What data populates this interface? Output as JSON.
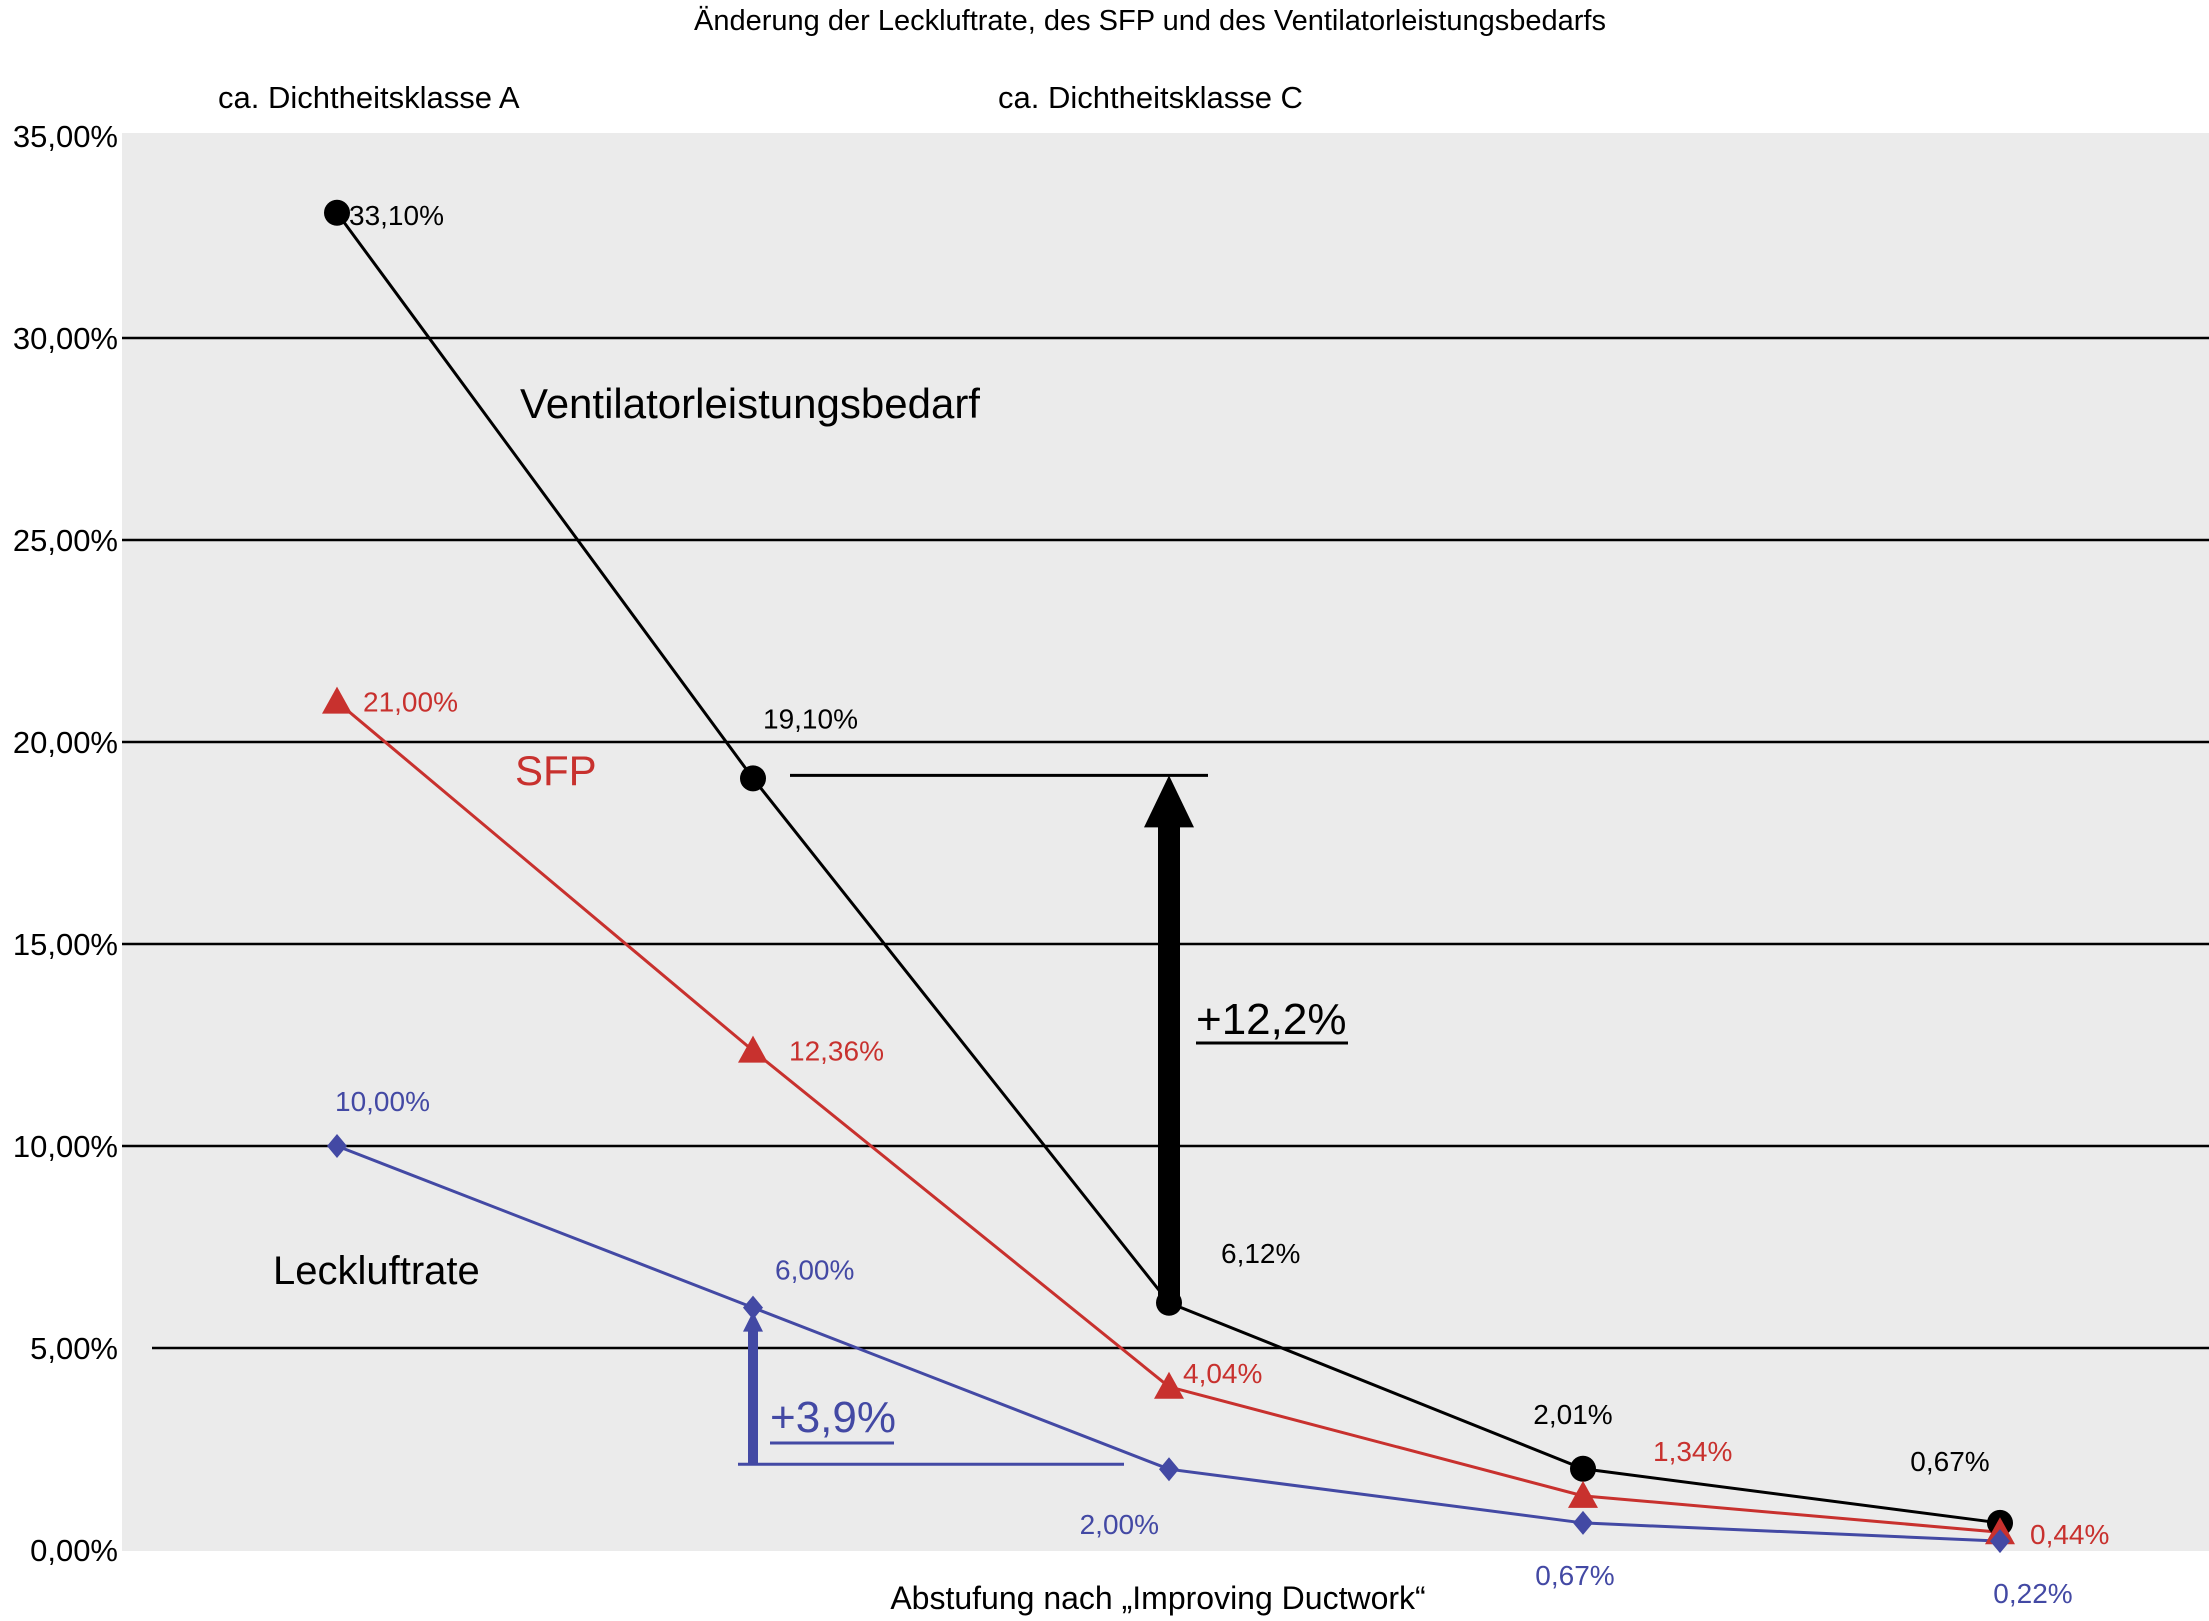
{
  "chart_data": {
    "type": "line",
    "title": "Änderung der Leckluftrate, des SFP und des Ventilatorleistungsbedarfs",
    "xlabel": "Abstufung nach „Improving Ductwork“",
    "ylabel": "",
    "ylim": [
      0,
      35
    ],
    "yticks": [
      "0,00%",
      "5,00%",
      "10,00%",
      "15,00%",
      "20,00%",
      "25,00%",
      "30,00%",
      "35,00%"
    ],
    "ytick_values": [
      0,
      5,
      10,
      15,
      20,
      25,
      30,
      35
    ],
    "grid": true,
    "x": [
      1,
      2,
      3,
      4,
      5
    ],
    "series": [
      {
        "name": "Ventilatorleistungsbedarf",
        "color": "#000000",
        "marker": "circle",
        "values": [
          33.1,
          19.1,
          6.12,
          2.01,
          0.67
        ],
        "labels": [
          "33,10%",
          "19,10%",
          "6,12%",
          "2,01%",
          "0,67%"
        ]
      },
      {
        "name": "SFP",
        "color": "#c8312e",
        "marker": "triangle",
        "values": [
          21.0,
          12.36,
          4.04,
          1.34,
          0.44
        ],
        "labels": [
          "21,00%",
          "12,36%",
          "4,04%",
          "1,34%",
          "0,44%"
        ]
      },
      {
        "name": "Leckluftrate",
        "color": "#4349a4",
        "marker": "diamond",
        "values": [
          10.0,
          6.0,
          2.0,
          0.67,
          0.22
        ],
        "labels": [
          "10,00%",
          "6,00%",
          "2,00%",
          "0,67%",
          "0,22%"
        ]
      }
    ],
    "annotations": {
      "class_a": "ca. Dichtheitsklasse A",
      "class_c": "ca. Dichtheitsklasse C",
      "delta_black": "+12,2%",
      "delta_blue": "+3,9%"
    }
  },
  "colors": {
    "plot_background": "#ebebeb",
    "grid": "#000000",
    "black_series": "#000000",
    "red_series": "#c8312e",
    "blue_series": "#4349a4"
  }
}
